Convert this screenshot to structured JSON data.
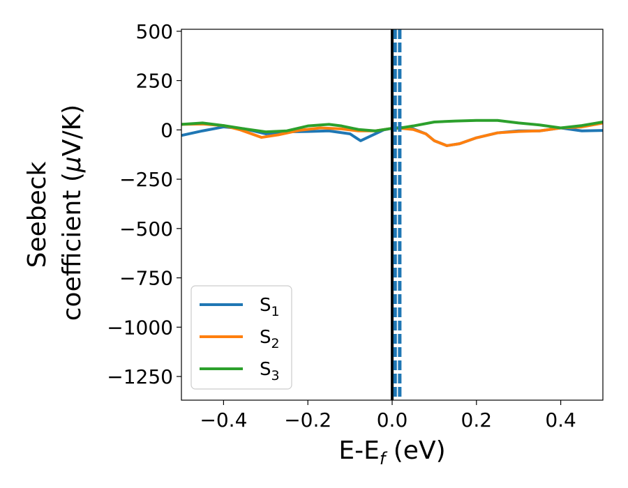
{
  "chart_data": {
    "type": "line",
    "title": "",
    "xlabel": {
      "main": "E-E",
      "sub": "f",
      "unit": " (eV)"
    },
    "ylabel": {
      "line1": "Seebeck",
      "line2": "coefficient  (",
      "mu": "μ",
      "unit": "V/K)"
    },
    "xlim": [
      -0.5,
      0.5
    ],
    "ylim": [
      -1370,
      510
    ],
    "xticks": [
      -0.4,
      -0.2,
      0.0,
      0.2,
      0.4
    ],
    "xtick_labels": [
      "−0.4",
      "−0.2",
      "0.0",
      "0.2",
      "0.4"
    ],
    "yticks": [
      500,
      250,
      0,
      -250,
      -500,
      -750,
      -1000,
      -1250
    ],
    "ytick_labels": [
      "500",
      "250",
      "0",
      "−250",
      "−500",
      "−750",
      "−1000",
      "−1250"
    ],
    "grid": false,
    "legend_position": "lower-left",
    "series": [
      {
        "name": "S",
        "sub": "1",
        "color": "#1f77b4",
        "points": [
          [
            -0.5,
            -28
          ],
          [
            -0.45,
            -5
          ],
          [
            -0.4,
            15
          ],
          [
            -0.35,
            5
          ],
          [
            -0.3,
            -20
          ],
          [
            -0.25,
            -10
          ],
          [
            -0.2,
            -8
          ],
          [
            -0.15,
            -5
          ],
          [
            -0.1,
            -20
          ],
          [
            -0.075,
            -55
          ],
          [
            -0.05,
            -30
          ],
          [
            -0.02,
            0
          ],
          [
            0.0,
            8
          ],
          [
            0.02,
            12
          ],
          [
            0.05,
            5
          ],
          [
            0.08,
            -20
          ],
          [
            0.1,
            -55
          ],
          [
            0.13,
            -80
          ],
          [
            0.16,
            -70
          ],
          [
            0.2,
            -40
          ],
          [
            0.25,
            -15
          ],
          [
            0.3,
            -5
          ],
          [
            0.35,
            -5
          ],
          [
            0.4,
            10
          ],
          [
            0.45,
            -5
          ],
          [
            0.5,
            -3
          ]
        ]
      },
      {
        "name": "S",
        "sub": "2",
        "color": "#ff7f0e",
        "points": [
          [
            -0.5,
            28
          ],
          [
            -0.45,
            30
          ],
          [
            -0.4,
            22
          ],
          [
            -0.36,
            0
          ],
          [
            -0.31,
            -38
          ],
          [
            -0.27,
            -25
          ],
          [
            -0.22,
            -2
          ],
          [
            -0.17,
            10
          ],
          [
            -0.12,
            5
          ],
          [
            -0.08,
            -5
          ],
          [
            -0.04,
            -5
          ],
          [
            0.0,
            8
          ],
          [
            0.02,
            8
          ],
          [
            0.05,
            2
          ],
          [
            0.08,
            -20
          ],
          [
            0.1,
            -55
          ],
          [
            0.13,
            -80
          ],
          [
            0.16,
            -70
          ],
          [
            0.2,
            -40
          ],
          [
            0.25,
            -15
          ],
          [
            0.3,
            -8
          ],
          [
            0.35,
            -5
          ],
          [
            0.4,
            10
          ],
          [
            0.45,
            15
          ],
          [
            0.5,
            35
          ]
        ]
      },
      {
        "name": "S",
        "sub": "3",
        "color": "#2ca02c",
        "points": [
          [
            -0.5,
            28
          ],
          [
            -0.45,
            35
          ],
          [
            -0.4,
            22
          ],
          [
            -0.35,
            5
          ],
          [
            -0.3,
            -10
          ],
          [
            -0.25,
            -5
          ],
          [
            -0.2,
            20
          ],
          [
            -0.15,
            28
          ],
          [
            -0.12,
            20
          ],
          [
            -0.08,
            2
          ],
          [
            -0.04,
            -5
          ],
          [
            0.0,
            8
          ],
          [
            0.02,
            10
          ],
          [
            0.05,
            20
          ],
          [
            0.1,
            40
          ],
          [
            0.15,
            45
          ],
          [
            0.2,
            48
          ],
          [
            0.25,
            48
          ],
          [
            0.3,
            35
          ],
          [
            0.35,
            25
          ],
          [
            0.4,
            10
          ],
          [
            0.45,
            22
          ],
          [
            0.5,
            40
          ]
        ]
      }
    ],
    "vlines": [
      {
        "x": 0.0,
        "color": "#000000",
        "style": "solid"
      },
      {
        "x": 0.007,
        "color": "#1f77b4",
        "style": "dashed"
      },
      {
        "x": 0.018,
        "color": "#1f77b4",
        "style": "dashed"
      }
    ]
  }
}
